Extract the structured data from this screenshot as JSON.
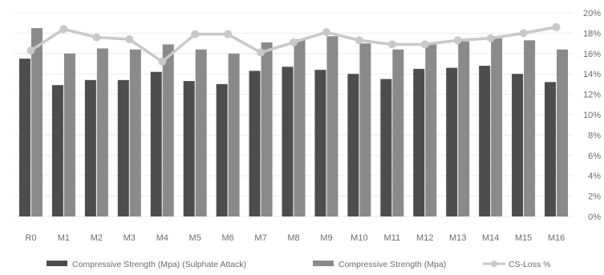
{
  "chart_data": {
    "type": "bar",
    "categories": [
      "R0",
      "M1",
      "M2",
      "M3",
      "M4",
      "M5",
      "M6",
      "M7",
      "M8",
      "M9",
      "M10",
      "M11",
      "M12",
      "M13",
      "M14",
      "M15",
      "M16"
    ],
    "series": [
      {
        "name": "Compressive Strength (Mpa) (Sulphate Attack)",
        "kind": "bar",
        "axis": "left",
        "color": "#4d4d4d",
        "values": [
          15.5,
          12.9,
          13.4,
          13.4,
          14.2,
          13.3,
          13.0,
          14.3,
          14.7,
          14.4,
          14.0,
          13.5,
          14.5,
          14.6,
          14.8,
          14.0,
          13.2
        ]
      },
      {
        "name": "Compressive Strength (Mpa)",
        "kind": "bar",
        "axis": "left",
        "color": "#8a8a8a",
        "values": [
          18.5,
          16.0,
          16.5,
          16.4,
          16.9,
          16.4,
          16.0,
          17.1,
          17.4,
          17.7,
          17.0,
          16.4,
          17.1,
          17.2,
          17.5,
          17.3,
          16.4
        ]
      },
      {
        "name": "CS-Loss %",
        "kind": "line",
        "axis": "right",
        "color": "#c8c8c8",
        "values": [
          16.3,
          18.4,
          17.6,
          17.4,
          15.2,
          17.9,
          17.9,
          16.1,
          17.1,
          18.1,
          17.3,
          16.9,
          16.9,
          17.3,
          17.5,
          18.0,
          18.6
        ]
      }
    ],
    "right_axis": {
      "ticks": [
        "0%",
        "2%",
        "4%",
        "6%",
        "8%",
        "10%",
        "12%",
        "14%",
        "16%",
        "18%",
        "20%"
      ],
      "ylim": [
        0,
        20
      ]
    },
    "left_axis_range": [
      0,
      20
    ],
    "grid": true,
    "legend_position": "bottom"
  }
}
